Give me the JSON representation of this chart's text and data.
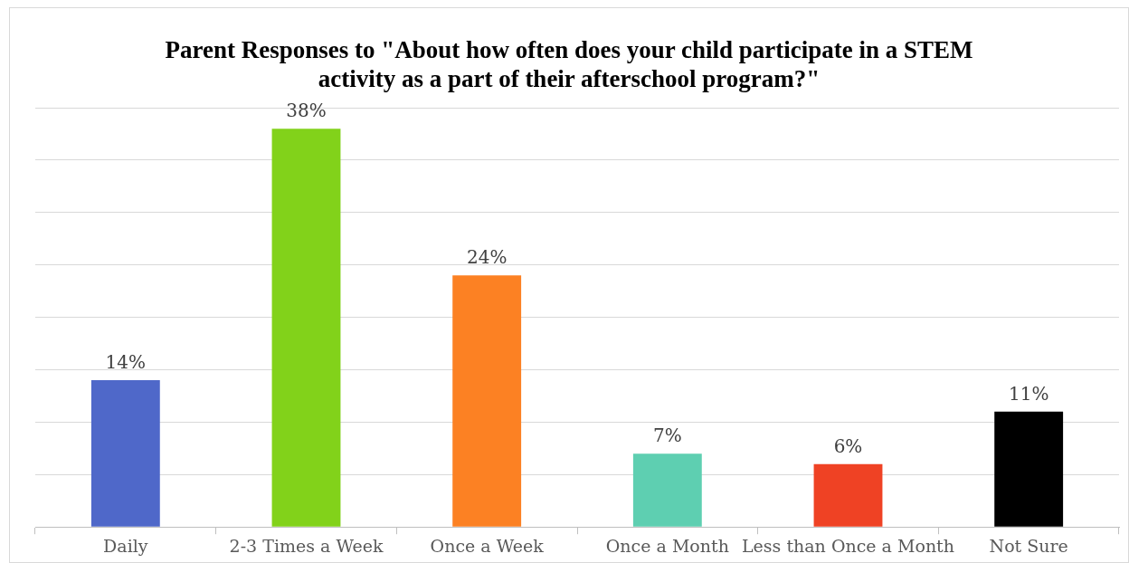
{
  "chart_data": {
    "type": "bar",
    "title": "Parent Responses to \"About how  often does your child participate in a STEM activity as a part of their afterschool program?\"",
    "categories": [
      "Daily",
      "2-3 Times a Week",
      "Once a Week",
      "Once a Month",
      "Less than Once a Month",
      "Not Sure"
    ],
    "values": [
      14,
      38,
      24,
      7,
      6,
      11
    ],
    "colors": [
      "#4f68c9",
      "#82d21a",
      "#fc8123",
      "#5ecfb1",
      "#ef4224",
      "#000000"
    ],
    "value_labels": [
      "14%",
      "38%",
      "24%",
      "7%",
      "6%",
      "11%"
    ],
    "ylim": [
      0,
      40
    ],
    "yticks": [
      {
        "value": 0,
        "label": null
      },
      {
        "value": 5,
        "label": null
      },
      {
        "value": 10,
        "label": null
      },
      {
        "value": 15,
        "label": null
      },
      {
        "value": 20,
        "label": null
      },
      {
        "value": 25,
        "label": null
      },
      {
        "value": 30,
        "label": null
      },
      {
        "value": 35,
        "label": null
      },
      {
        "value": 40,
        "label": null
      }
    ],
    "grid": "y",
    "tick_labels": "x",
    "legend": false
  }
}
